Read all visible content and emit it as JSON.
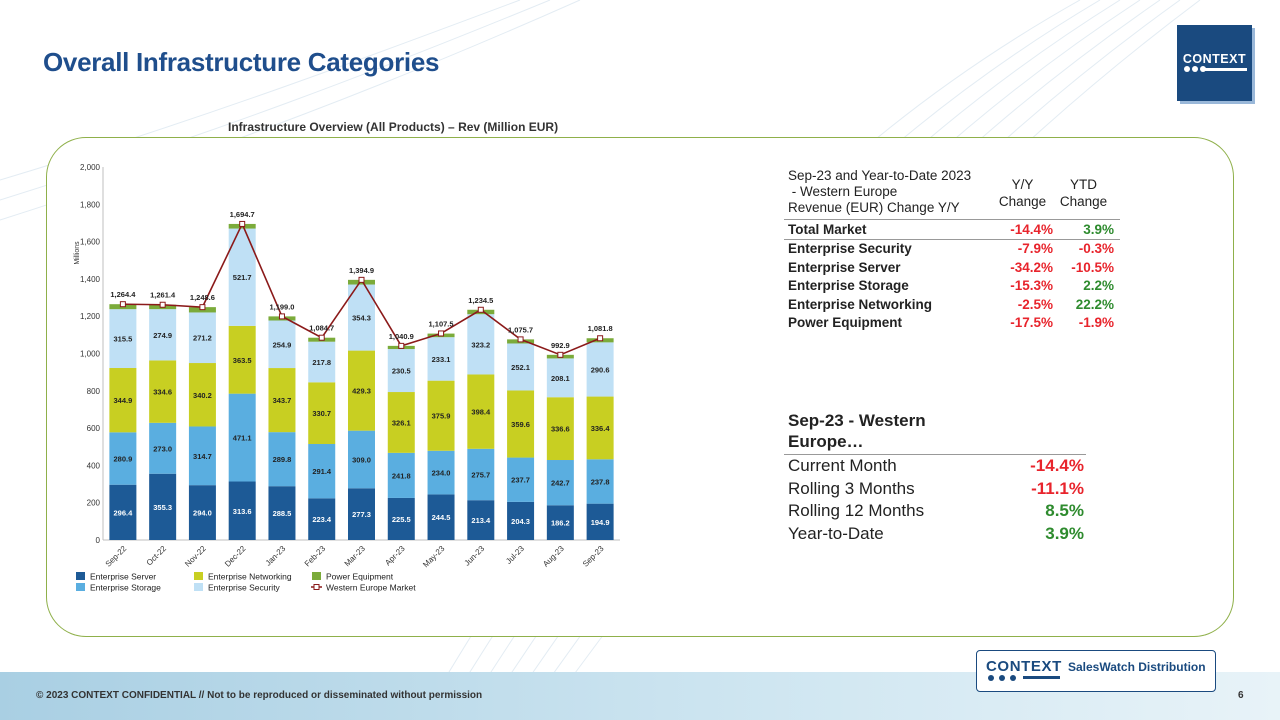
{
  "page": {
    "title": "Overall Infrastructure Categories",
    "page_number": "6"
  },
  "logo": {
    "text": "CONTEXT"
  },
  "footer": {
    "confidential": "© 2023 CONTEXT CONFIDENTIAL // Not to be reproduced or disseminated without permission",
    "brand": "CONTEXT",
    "product": "SalesWatch Distribution"
  },
  "colors": {
    "server": "#1d5a96",
    "storage": "#5aaee0",
    "networking": "#c8cf22",
    "security": "#bfe0f5",
    "power": "#7bab3a",
    "market": "#8b1a1a",
    "title": "#1f4e8c",
    "negative": "#e8242c",
    "positive": "#2e8b2e"
  },
  "chart_data": {
    "type": "bar",
    "stacked": true,
    "title": "Infrastructure  Overview  (All Products) – Rev  (Million EUR)",
    "xlabel": "",
    "ylabel": "Millions",
    "ylim": [
      0,
      2000
    ],
    "yticks": [
      "0",
      "200",
      "400",
      "600",
      "800",
      "1,000",
      "1,200",
      "1,400",
      "1,600",
      "1,800",
      "2,000"
    ],
    "categories": [
      "Sep-22",
      "Oct-22",
      "Nov-22",
      "Dec-22",
      "Jan-23",
      "Feb-23",
      "Mar-23",
      "Apr-23",
      "May-23",
      "Jun-23",
      "Jul-23",
      "Aug-23",
      "Sep-23"
    ],
    "series": [
      {
        "name": "Enterprise Server",
        "values": [
          296.4,
          355.3,
          294.0,
          313.6,
          288.5,
          223.4,
          277.3,
          225.5,
          244.5,
          213.4,
          204.3,
          186.2,
          194.9
        ],
        "labels": [
          "296.4",
          "355.3",
          "294.0",
          "313.6",
          "288.5",
          "223.4",
          "277.3",
          "225.5",
          "244.5",
          "213.4",
          "204.3",
          "186.2",
          "194.9"
        ]
      },
      {
        "name": "Enterprise Storage",
        "values": [
          280.9,
          273.0,
          314.7,
          471.1,
          289.8,
          291.4,
          309.0,
          241.8,
          234.0,
          275.7,
          237.7,
          242.7,
          237.8
        ],
        "labels": [
          "280.9",
          "273.0",
          "314.7",
          "471.1",
          "289.8",
          "291.4",
          "309.0",
          "241.8",
          "234.0",
          "275.7",
          "237.7",
          "242.7",
          "237.8"
        ]
      },
      {
        "name": "Enterprise Networking",
        "values": [
          344.9,
          334.6,
          340.2,
          363.5,
          343.7,
          330.7,
          429.3,
          326.1,
          375.9,
          398.4,
          359.6,
          336.6,
          336.4
        ],
        "labels": [
          "344.9",
          "334.6",
          "340.2",
          "363.5",
          "343.7",
          "330.7",
          "429.3",
          "326.1",
          "375.9",
          "398.4",
          "359.6",
          "336.6",
          "336.4"
        ]
      },
      {
        "name": "Enterprise Security",
        "values": [
          315.5,
          274.9,
          271.2,
          521.7,
          254.9,
          217.8,
          354.3,
          230.5,
          233.1,
          323.2,
          252.1,
          208.1,
          290.6
        ],
        "labels": [
          "315.5",
          "274.9",
          "271.2",
          "521.7",
          "254.9",
          "217.8",
          "354.3",
          "230.5",
          "233.1",
          "323.2",
          "252.1",
          "208.1",
          "290.6"
        ]
      },
      {
        "name": "Power Equipment",
        "values": [
          26.7,
          23.6,
          28.5,
          24.8,
          22.1,
          21.4,
          25.0,
          17.0,
          19.3,
          23.8,
          22.0,
          19.3,
          22.1
        ]
      }
    ],
    "line": {
      "name": "Western Europe Market",
      "values": [
        1264.4,
        1261.4,
        1248.6,
        1694.7,
        1199.0,
        1084.7,
        1394.9,
        1040.9,
        1107.5,
        1234.5,
        1075.7,
        992.9,
        1081.8
      ],
      "labels": [
        "1,264.4",
        "1,261.4",
        "1,248.6",
        "1,694.7",
        "1,199.0",
        "1,084.7",
        "1,394.9",
        "1,040.9",
        "1,107.5",
        "1,234.5",
        "1,075.7",
        "992.9",
        "1,081.8"
      ]
    },
    "legend": {
      "position": "bottom-left",
      "entries": [
        "Enterprise Server",
        "Enterprise Networking",
        "Power Equipment",
        "Enterprise Storage",
        "Enterprise Security",
        "Western Europe Market"
      ]
    }
  },
  "change_table": {
    "description_lines": [
      "Sep-23 and Year-to-Date 2023",
      " - Western Europe",
      "Revenue (EUR) Change Y/Y"
    ],
    "col_yy": [
      "Y/Y",
      "Change"
    ],
    "col_ytd": [
      "YTD",
      "Change"
    ],
    "rows": [
      {
        "label": "Total Market",
        "yy": "-14.4%",
        "ytd": "3.9%"
      },
      {
        "label": "Enterprise Security",
        "yy": "-7.9%",
        "ytd": "-0.3%"
      },
      {
        "label": "Enterprise Server",
        "yy": "-34.2%",
        "ytd": "-10.5%"
      },
      {
        "label": "Enterprise Storage",
        "yy": "-15.3%",
        "ytd": "2.2%"
      },
      {
        "label": "Enterprise Networking",
        "yy": "-2.5%",
        "ytd": "22.2%"
      },
      {
        "label": "Power Equipment",
        "yy": "-17.5%",
        "ytd": "-1.9%"
      }
    ]
  },
  "summary_table": {
    "title_lines": [
      "Sep-23 - Western",
      "Europe…"
    ],
    "rows": [
      {
        "label": "Current Month",
        "value": "-14.4%"
      },
      {
        "label": "Rolling 3 Months",
        "value": "-11.1%"
      },
      {
        "label": "Rolling 12 Months",
        "value": "8.5%"
      },
      {
        "label": "Year-to-Date",
        "value": "3.9%"
      }
    ]
  }
}
